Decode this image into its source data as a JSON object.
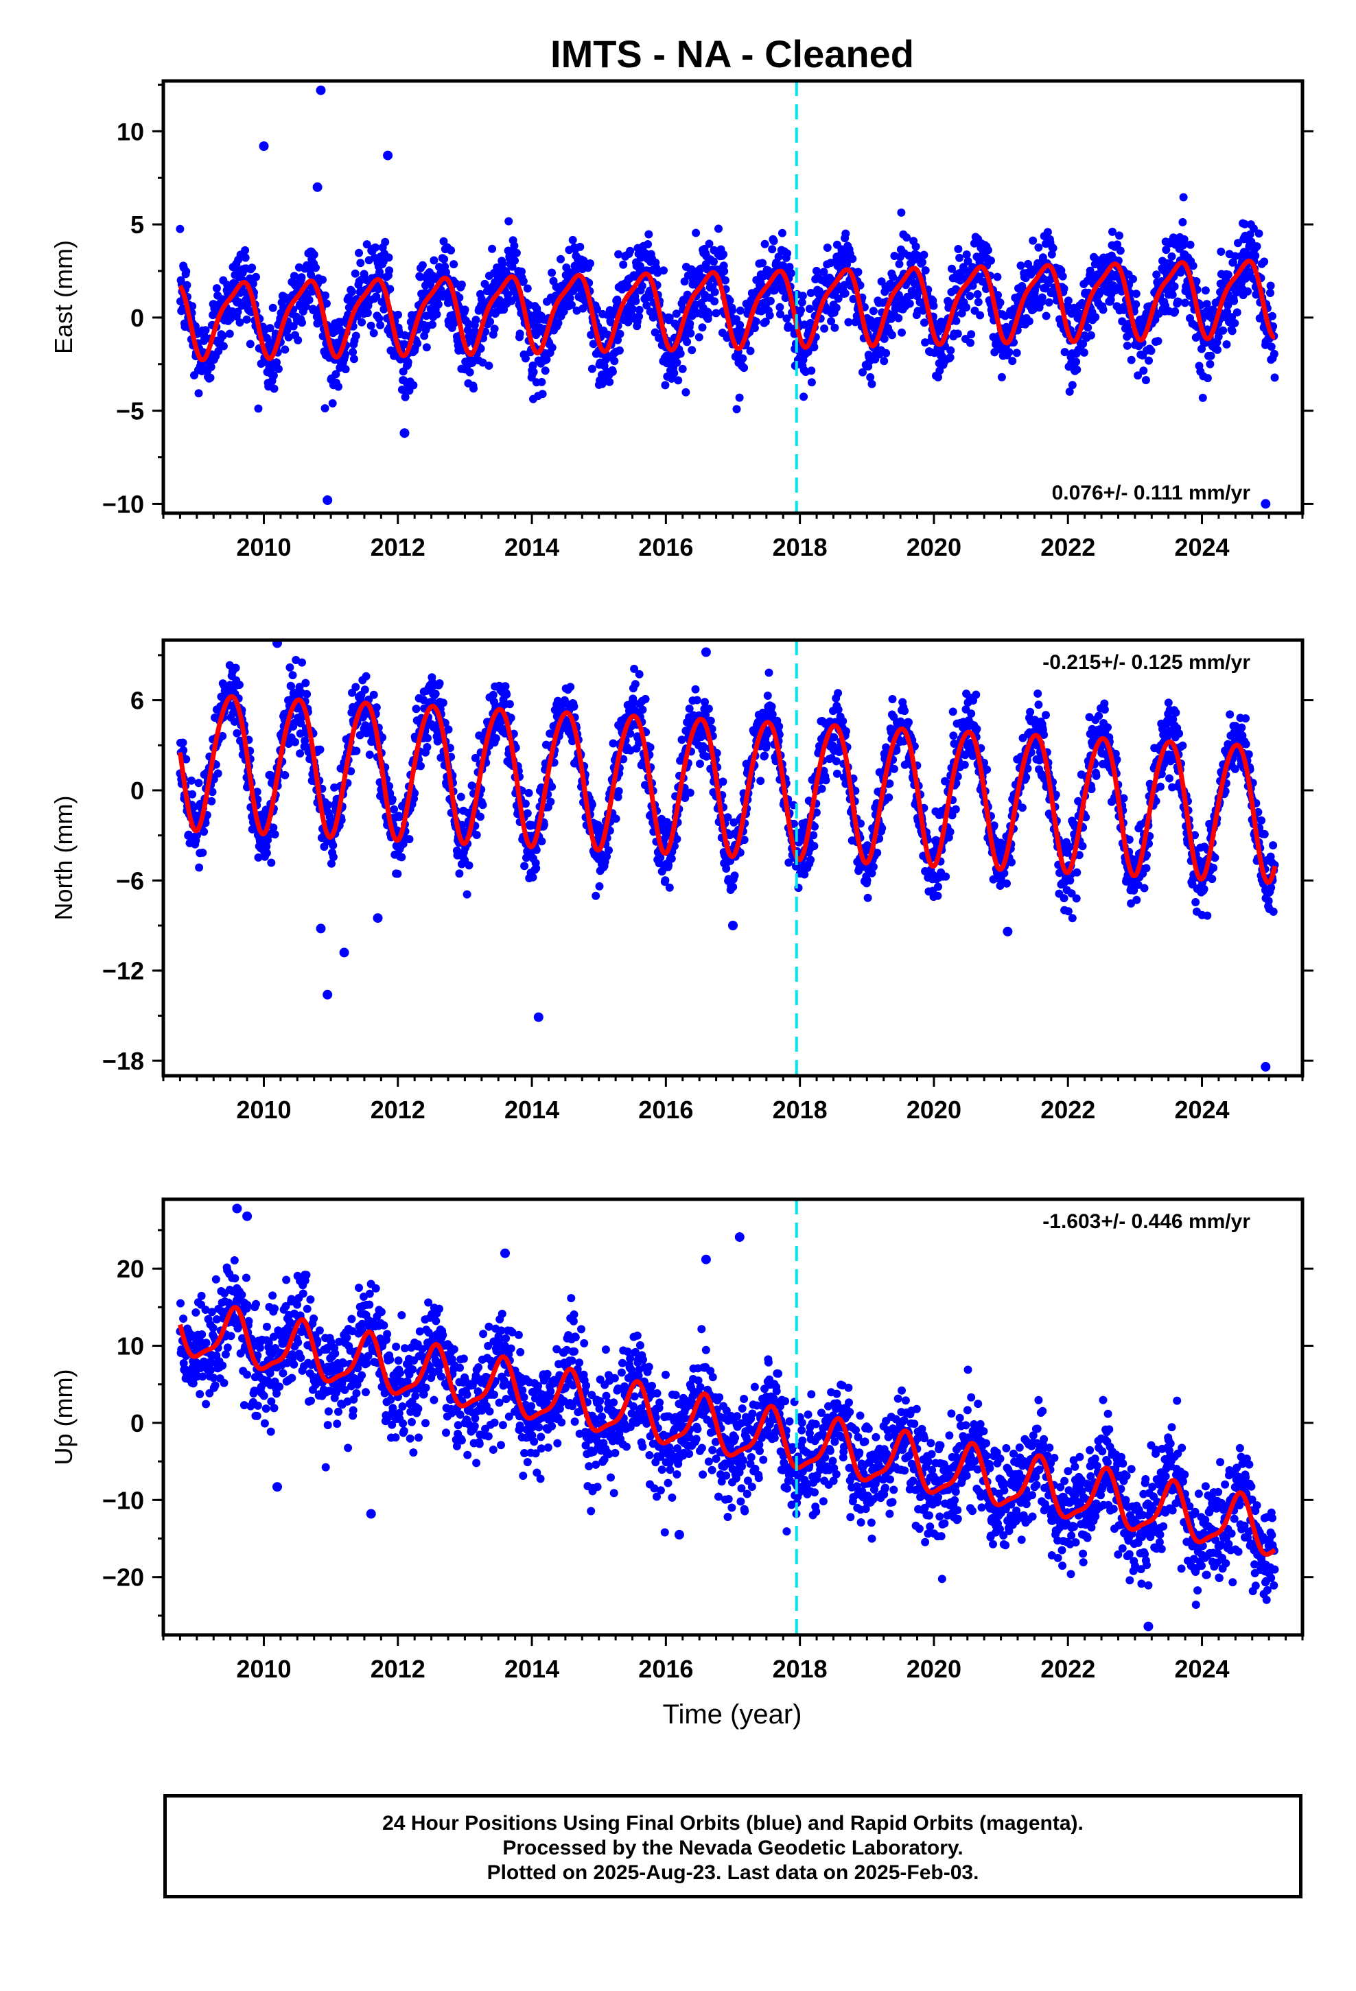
{
  "chart_data": {
    "type": "scatter",
    "title": "IMTS  - NA - Cleaned",
    "xlabel": "Time (year)",
    "xlim": [
      2008.5,
      2025.5
    ],
    "x_ticks": [
      2010,
      2012,
      2014,
      2016,
      2018,
      2020,
      2022,
      2024
    ],
    "x_tick_labels": [
      "2010",
      "2012",
      "2014",
      "2016",
      "2018",
      "2020",
      "2022",
      "2024"
    ],
    "reference_line": {
      "x": 2017.95,
      "color": "#00e5ee",
      "style": "dashed"
    },
    "series_colors": {
      "final_orbits": "#0000ff",
      "rapid_orbits": "#ff00ff",
      "model_fit": "#ff0000"
    },
    "time_range": [
      2008.75,
      2025.09
    ],
    "panels": [
      {
        "ylabel": "East (mm)",
        "ylim": [
          -10.5,
          12.7
        ],
        "y_ticks": [
          -10,
          -5,
          0,
          5,
          10
        ],
        "y_tick_labels": [
          "−10",
          "−5",
          "0",
          "5",
          "10"
        ],
        "rate_label": "0.076+/- 0.111 mm/yr",
        "rate_position": "bottom-right",
        "model": {
          "offset": 0.0,
          "trend": 0.076,
          "annual_amp": 1.9,
          "annual_phase_year": 0.62,
          "semiannual_amp": 0.5,
          "semiannual_phase_year": 0.3,
          "scatter": 1.1
        },
        "outliers": [
          [
            2010.0,
            9.2
          ],
          [
            2010.85,
            12.2
          ],
          [
            2010.8,
            7.0
          ],
          [
            2011.85,
            8.7
          ],
          [
            2010.95,
            -9.8
          ],
          [
            2012.1,
            -6.2
          ],
          [
            2024.95,
            -10.0
          ]
        ]
      },
      {
        "ylabel": "North (mm)",
        "ylim": [
          -19.0,
          10.0
        ],
        "y_ticks": [
          -18,
          -12,
          -6,
          0,
          6
        ],
        "y_tick_labels": [
          "−18",
          "−12",
          "−6",
          "0",
          "6"
        ],
        "rate_label": "-0.215+/- 0.125 mm/yr",
        "rate_position": "top-right",
        "model": {
          "offset": 2.2,
          "trend": -0.215,
          "annual_amp": 4.5,
          "annual_phase_year": 0.5,
          "semiannual_amp": 0.4,
          "semiannual_phase_year": 0.2,
          "scatter": 1.2
        },
        "outliers": [
          [
            2010.85,
            -9.2
          ],
          [
            2011.2,
            -10.8
          ],
          [
            2010.95,
            -13.6
          ],
          [
            2011.7,
            -8.5
          ],
          [
            2014.1,
            -15.1
          ],
          [
            2017.0,
            -9.0
          ],
          [
            2021.1,
            -9.4
          ],
          [
            2024.95,
            -18.4
          ],
          [
            2010.2,
            9.8
          ],
          [
            2016.6,
            9.2
          ]
        ]
      },
      {
        "ylabel": "Up (mm)",
        "ylim": [
          -27.5,
          29.0
        ],
        "y_ticks": [
          -20,
          -10,
          0,
          10,
          20
        ],
        "y_tick_labels": [
          "−20",
          "−10",
          "0",
          "10",
          "20"
        ],
        "rate_label": "-1.603+/- 0.446 mm/yr",
        "rate_position": "top-right",
        "model": {
          "offset": 12.0,
          "trend": -1.603,
          "annual_amp": 3.4,
          "annual_phase_year": 0.55,
          "semiannual_amp": 1.0,
          "semiannual_phase_year": 0.1,
          "scatter": 3.3
        },
        "outliers": [
          [
            2009.6,
            27.8
          ],
          [
            2009.75,
            26.8
          ],
          [
            2017.1,
            24.1
          ],
          [
            2011.6,
            -11.8
          ],
          [
            2010.2,
            -8.3
          ],
          [
            2016.2,
            -14.5
          ],
          [
            2023.2,
            -26.4
          ],
          [
            2016.6,
            21.2
          ],
          [
            2013.6,
            22.0
          ]
        ]
      }
    ]
  },
  "footer": {
    "line1": "24 Hour Positions Using Final Orbits (blue) and Rapid Orbits (magenta).",
    "line2": "Processed by the Nevada Geodetic Laboratory.",
    "line3": "Plotted on 2025-Aug-23. Last data on 2025-Feb-03."
  }
}
